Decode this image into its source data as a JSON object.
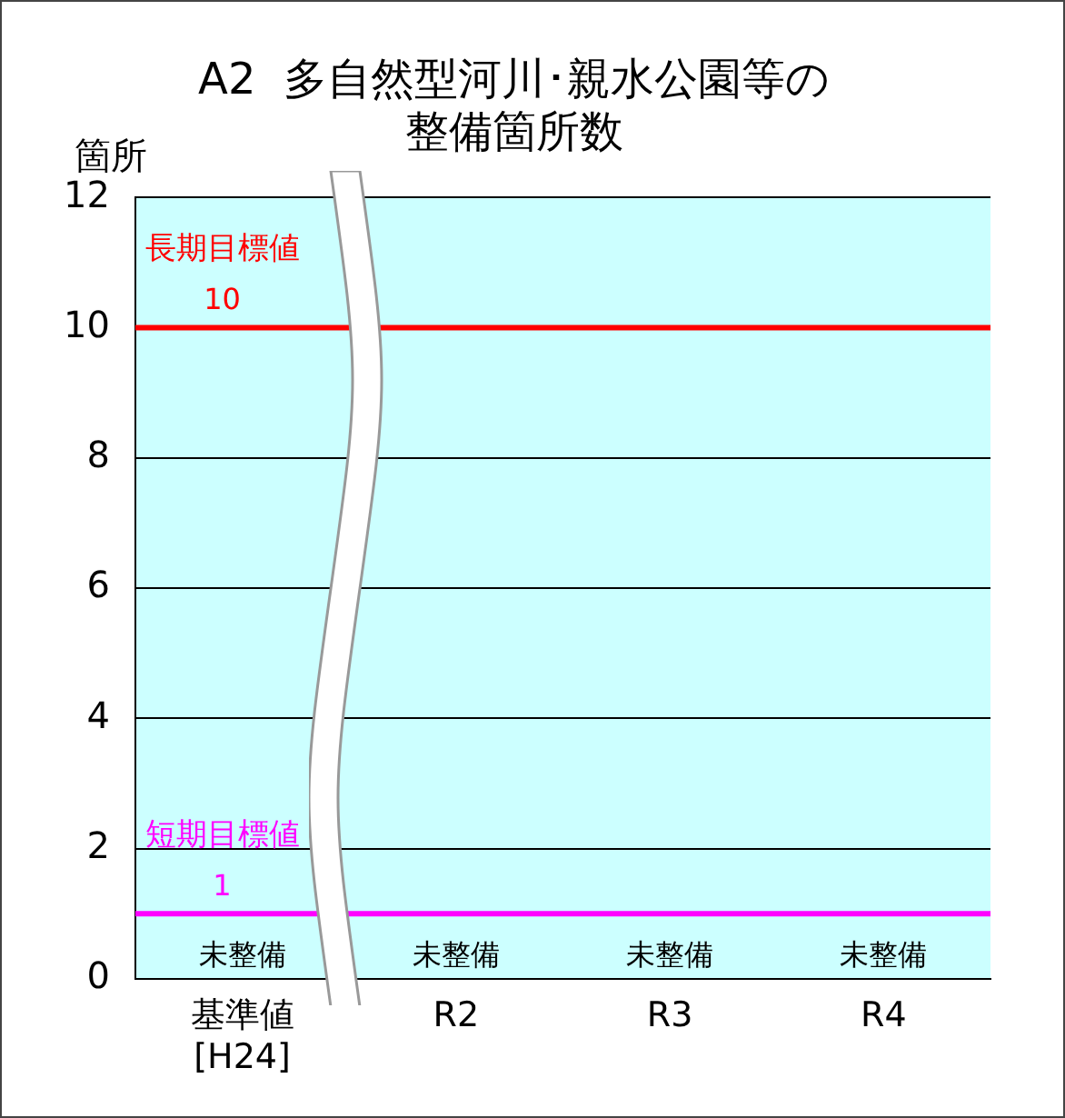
{
  "chart_data": {
    "type": "bar",
    "title": "A2  多自然型河川･親水公園等の整備箇所数",
    "ylabel": "箇所",
    "categories": [
      "基準値\n[H24]",
      "R2",
      "R3",
      "R4"
    ],
    "values": [
      0,
      0,
      0,
      0
    ],
    "value_labels": [
      "未整備",
      "未整備",
      "未整備",
      "未整備"
    ],
    "ylim": [
      0,
      12
    ],
    "yticks": [
      0,
      2,
      4,
      6,
      8,
      10,
      12
    ],
    "grid": "y",
    "legend": false,
    "ref_lines": [
      {
        "axis": "y",
        "value": 10,
        "label": "長期目標値\n10",
        "color": "#ff0000"
      },
      {
        "axis": "y",
        "value": 1,
        "label": "短期目標値\n1",
        "color": "#ff00ff"
      }
    ]
  }
}
